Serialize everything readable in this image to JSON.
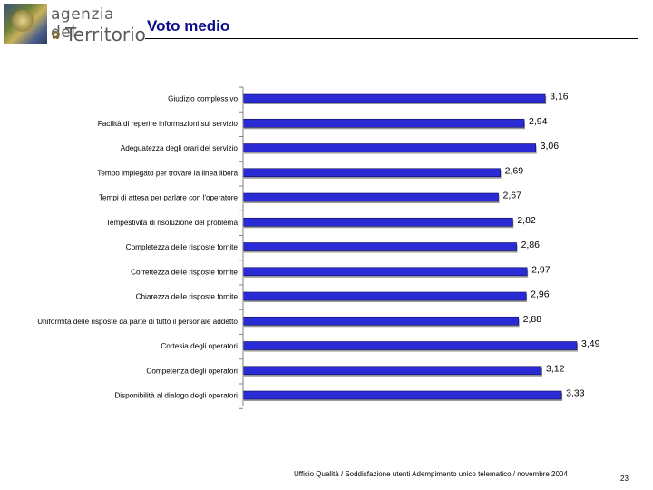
{
  "header": {
    "logo_line1": "agenzia del",
    "logo_line2": "Territorio",
    "title": "Voto medio"
  },
  "footer": {
    "text": "Ufficio Qualità / Soddisfazione utenti Adempimento unico telematico / novembre 2004",
    "page_number": "23"
  },
  "colors": {
    "bar_fill": "#2b2bd6",
    "title": "#0d0d8c"
  },
  "chart_data": {
    "type": "bar",
    "orientation": "horizontal",
    "title": "",
    "xlabel": "",
    "ylabel": "",
    "categories": [
      "Giudizio complessivo",
      "Facilità di reperire informazioni sul servizio",
      "Adeguatezza degli orari del servizio",
      "Tempo impiegato per trovare la linea libera",
      "Tempi di attesa per parlare con l'operatore",
      "Tempestività di risoluzione del problema",
      "Completezza delle risposte fornite",
      "Correttezza delle risposte fornite",
      "Chiarezza delle risposte fornite",
      "Uniformità delle risposte da parte di tutto il personale addetto",
      "Cortesia degli operatori",
      "Competenza degli operatori",
      "Disponibilità al dialogo degli operatori"
    ],
    "values": [
      3.16,
      2.94,
      3.06,
      2.69,
      2.67,
      2.82,
      2.86,
      2.97,
      2.96,
      2.88,
      3.49,
      3.12,
      3.33
    ],
    "value_labels": [
      "3,16",
      "2,94",
      "3,06",
      "2,69",
      "2,67",
      "2,82",
      "2,86",
      "2,97",
      "2,96",
      "2,88",
      "3,49",
      "3,12",
      "3,33"
    ],
    "xlim": [
      0,
      3.6
    ],
    "grid": false,
    "legend": "none"
  }
}
